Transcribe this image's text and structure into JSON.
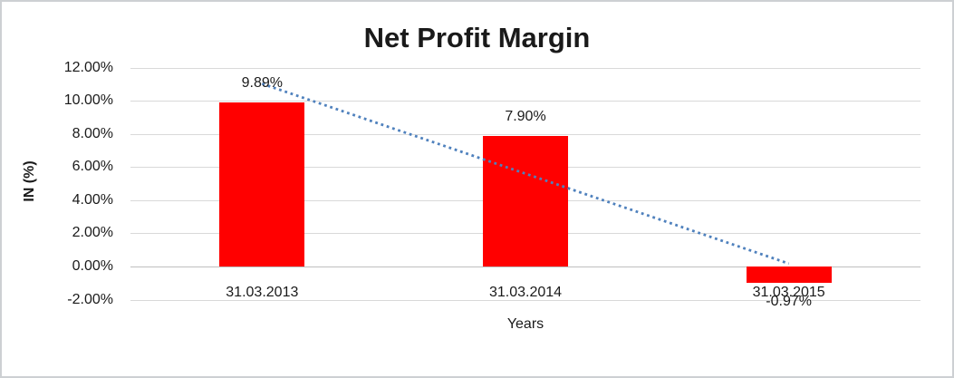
{
  "chart_data": {
    "type": "bar",
    "title": "Net Profit Margin",
    "xlabel": "Years",
    "ylabel": "IN (%)",
    "categories": [
      "31.03.2013",
      "31.03.2014",
      "31.03.2015"
    ],
    "values": [
      9.89,
      7.9,
      -0.97
    ],
    "data_labels": [
      "9.89%",
      "7.90%",
      "-0.97%"
    ],
    "yticks": [
      12,
      10,
      8,
      6,
      4,
      2,
      0,
      -2
    ],
    "ytick_labels": [
      "12.00%",
      "10.00%",
      "8.00%",
      "6.00%",
      "4.00%",
      "2.00%",
      "0.00%",
      "-2.00%"
    ],
    "ylim": [
      -2,
      12
    ],
    "grid": true,
    "legend": "none",
    "bar_color": "#FF0000",
    "trendline": {
      "type": "linear",
      "style": "dotted",
      "color": "#4F81BD"
    }
  }
}
